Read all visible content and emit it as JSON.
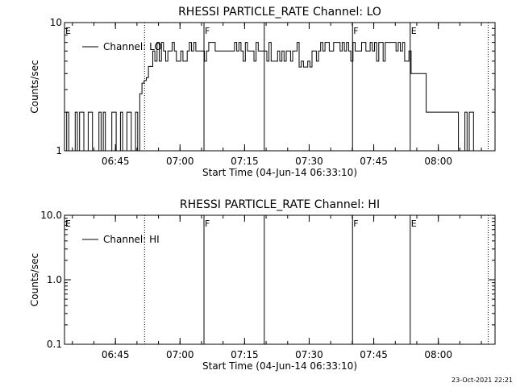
{
  "footer_stamp": "23-Oct-2021 22:21",
  "chart_data": [
    {
      "type": "line",
      "title": "RHESSI PARTICLE_RATE Channel: LO",
      "xlabel": "Start Time (04-Jun-14 06:33:10)",
      "ylabel": "Counts/sec",
      "yscale": "log",
      "ylim": [
        1,
        10
      ],
      "xlim_minutes": [
        0,
        100
      ],
      "x_ticks": [
        {
          "label": "06:45",
          "value": 11.83
        },
        {
          "label": "07:00",
          "value": 26.83
        },
        {
          "label": "07:15",
          "value": 41.83
        },
        {
          "label": "07:30",
          "value": 56.83
        },
        {
          "label": "07:45",
          "value": 71.83
        },
        {
          "label": "08:00",
          "value": 86.83
        }
      ],
      "y_ticks": [
        {
          "label": "1",
          "value": 1
        },
        {
          "label": "10",
          "value": 10
        }
      ],
      "legend": {
        "position": "top-left",
        "entries": [
          "Channel: LO"
        ]
      },
      "flags": [
        {
          "label": "E",
          "x": 0,
          "style": "none"
        },
        {
          "label": "",
          "x": 18.6,
          "style": "dotted"
        },
        {
          "label": "F",
          "x": 32.4,
          "style": "solid"
        },
        {
          "label": "",
          "x": 46.4,
          "style": "solid"
        },
        {
          "label": "F",
          "x": 66.9,
          "style": "solid"
        },
        {
          "label": "E",
          "x": 80.3,
          "style": "solid"
        },
        {
          "label": "",
          "x": 98.4,
          "style": "dotted"
        }
      ],
      "series": [
        {
          "name": "Channel: LO",
          "segments": [
            {
              "x_range": [
                0,
                17.5
              ],
              "levels": [
                1,
                2
              ],
              "pattern": "toggle"
            },
            {
              "x_range": [
                17.5,
                20.5
              ],
              "levels": [
                3,
                5
              ],
              "pattern": "ramp"
            },
            {
              "x_range": [
                20.5,
                80.5
              ],
              "levels": [
                5,
                6,
                7
              ],
              "pattern": "fluctuate"
            },
            {
              "x_range": [
                80.5,
                84
              ],
              "levels": [
                4
              ],
              "pattern": "flat"
            },
            {
              "x_range": [
                84,
                91.5
              ],
              "levels": [
                2
              ],
              "pattern": "flat"
            },
            {
              "x_range": [
                91.5,
                97.5
              ],
              "levels": [
                1,
                2
              ],
              "pattern": "toggle"
            }
          ]
        }
      ]
    },
    {
      "type": "line",
      "title": "RHESSI PARTICLE_RATE Channel: HI",
      "xlabel": "Start Time (04-Jun-14 06:33:10)",
      "ylabel": "Counts/sec",
      "yscale": "log",
      "ylim": [
        0.1,
        10.0
      ],
      "xlim_minutes": [
        0,
        100
      ],
      "x_ticks": [
        {
          "label": "06:45",
          "value": 11.83
        },
        {
          "label": "07:00",
          "value": 26.83
        },
        {
          "label": "07:15",
          "value": 41.83
        },
        {
          "label": "07:30",
          "value": 56.83
        },
        {
          "label": "07:45",
          "value": 71.83
        },
        {
          "label": "08:00",
          "value": 86.83
        }
      ],
      "y_ticks": [
        {
          "label": "0.1",
          "value": 0.1
        },
        {
          "label": "1.0",
          "value": 1.0
        },
        {
          "label": "10.0",
          "value": 10.0
        }
      ],
      "legend": {
        "position": "top-left",
        "entries": [
          "Channel: HI"
        ]
      },
      "flags": [
        {
          "label": "E",
          "x": 0,
          "style": "none"
        },
        {
          "label": "",
          "x": 18.6,
          "style": "dotted"
        },
        {
          "label": "F",
          "x": 32.4,
          "style": "solid"
        },
        {
          "label": "",
          "x": 46.4,
          "style": "solid"
        },
        {
          "label": "F",
          "x": 66.9,
          "style": "solid"
        },
        {
          "label": "E",
          "x": 80.3,
          "style": "solid"
        },
        {
          "label": "",
          "x": 98.4,
          "style": "dotted"
        }
      ],
      "series": [
        {
          "name": "Channel: HI",
          "segments": []
        }
      ]
    }
  ]
}
